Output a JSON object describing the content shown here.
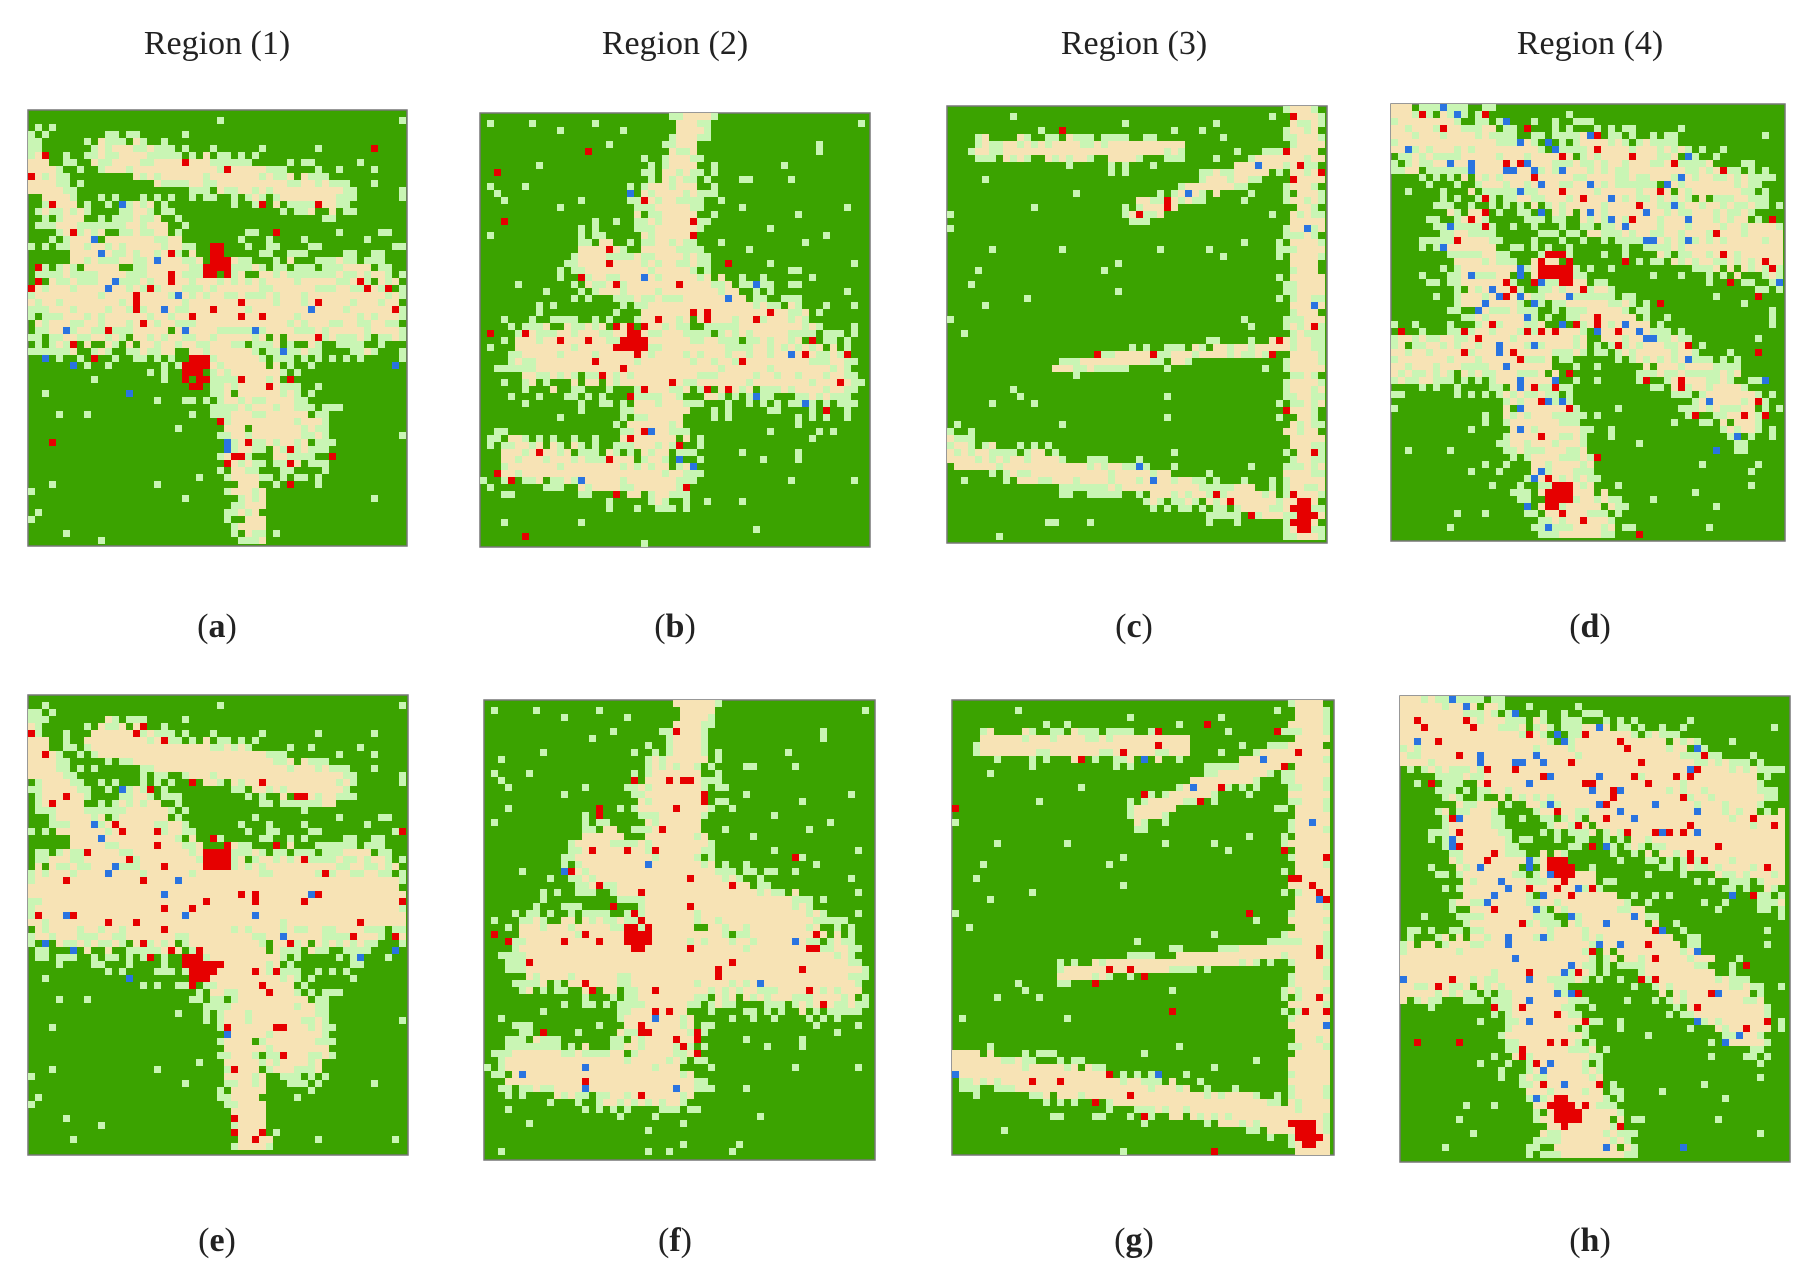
{
  "columns": [
    "Region (1)",
    "Region (2)",
    "Region (3)",
    "Region (4)"
  ],
  "panels": [
    "(a)",
    "(b)",
    "(c)",
    "(d)",
    "(e)",
    "(f)",
    "(g)",
    "(h)"
  ]
}
